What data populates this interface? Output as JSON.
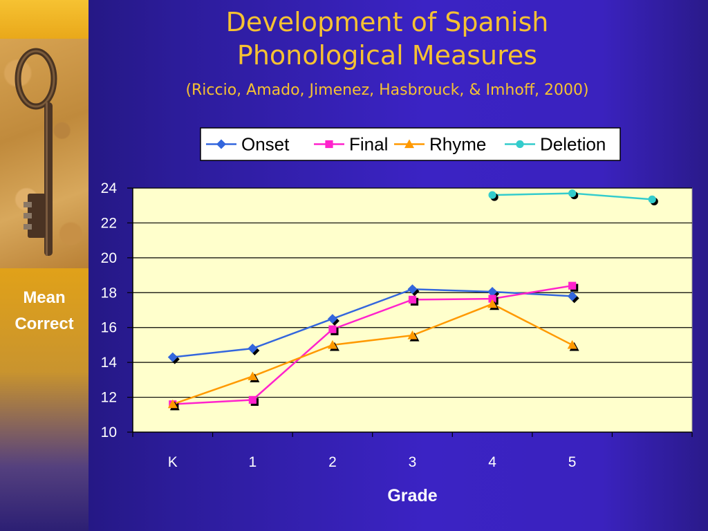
{
  "slide": {
    "title_line1": "Development of Spanish",
    "title_line2": "Phonological Measures",
    "subtitle": "(Riccio, Amado, Jimenez, Hasbrouck, & Imhoff, 2000)"
  },
  "chart_data": {
    "type": "line",
    "title": "Development of Spanish Phonological Measures",
    "xlabel": "Grade",
    "ylabel": "Mean Correct",
    "ylabel_lines": [
      "Mean",
      "Correct"
    ],
    "categories": [
      "K",
      "1",
      "2",
      "3",
      "4",
      "5",
      ""
    ],
    "ylim": [
      10,
      24
    ],
    "yticks": [
      10,
      12,
      14,
      16,
      18,
      20,
      22,
      24
    ],
    "grid": true,
    "legend_position": "top",
    "plot_background": "#ffffcc",
    "series": [
      {
        "name": "Onset",
        "color": "#3366dd",
        "marker": "diamond",
        "values": [
          14.3,
          14.8,
          16.5,
          18.2,
          18.05,
          17.8,
          null
        ]
      },
      {
        "name": "Final",
        "color": "#ff22cc",
        "marker": "square",
        "values": [
          11.6,
          11.85,
          15.9,
          17.6,
          17.65,
          18.4,
          null
        ]
      },
      {
        "name": "Rhyme",
        "color": "#ff9900",
        "marker": "triangle",
        "values": [
          11.6,
          13.2,
          15.0,
          15.55,
          17.35,
          15.0,
          null
        ]
      },
      {
        "name": "Deletion",
        "color": "#33cccc",
        "marker": "circle",
        "values": [
          null,
          null,
          null,
          null,
          23.6,
          23.7,
          23.35
        ]
      }
    ]
  },
  "colors": {
    "title": "#f6c232",
    "gridline": "#000000",
    "axis_text": "#ffffff"
  }
}
